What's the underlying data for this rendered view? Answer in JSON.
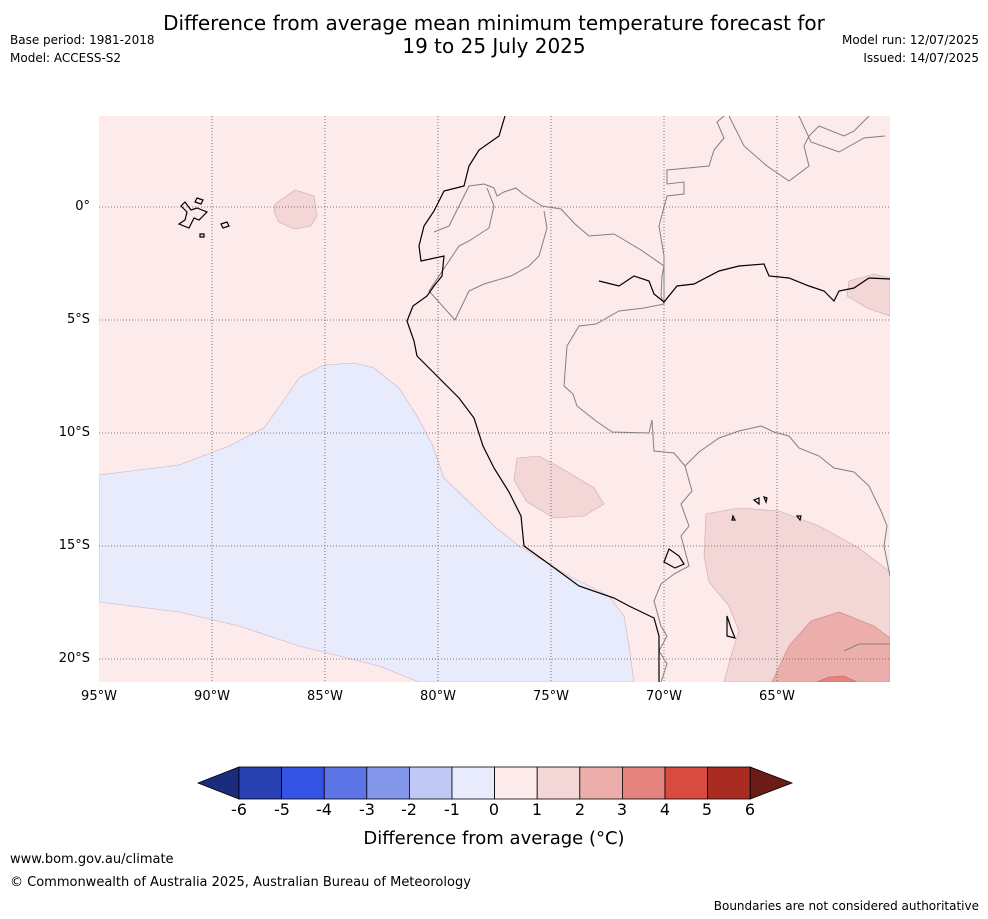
{
  "header": {
    "title_line1": "Difference from average mean minimum temperature forecast for",
    "title_line2": "19 to 25 July 2025",
    "base_period": "Base period: 1981-2018",
    "model": "Model: ACCESS-S2",
    "model_run": "Model run: 12/07/2025",
    "issued": "Issued: 14/07/2025"
  },
  "map": {
    "lon_ticks": [
      "95°W",
      "90°W",
      "85°W",
      "80°W",
      "75°W",
      "70°W",
      "65°W"
    ],
    "lat_ticks": [
      "0°",
      "5°S",
      "10°S",
      "15°S",
      "20°S"
    ],
    "colors": {
      "anomaly_neg1_0": "#e8ebfb",
      "anomaly_0_1": "#fcebea",
      "anomaly_1_2": "#f3d6d6",
      "anomaly_2_3": "#ecaeab",
      "anomaly_3_4": "#e5837e",
      "coastline": "#000000",
      "borders": "#808080",
      "gridlines": "#555555"
    }
  },
  "colorbar": {
    "label": "Difference from average (°C)",
    "ticks": [
      "-6",
      "-5",
      "-4",
      "-3",
      "-2",
      "-1",
      "0",
      "1",
      "2",
      "3",
      "4",
      "5",
      "6"
    ],
    "colors": [
      "#1b2b7e",
      "#2840b0",
      "#3553e3",
      "#5d74e6",
      "#8597ea",
      "#c0c8f5",
      "#e8ebfb",
      "#fcebea",
      "#f3d6d6",
      "#ecaeab",
      "#e5837e",
      "#d94a41",
      "#a92b22",
      "#6c1c17"
    ]
  },
  "footer": {
    "website": "www.bom.gov.au/climate",
    "copyright": "© Commonwealth of Australia 2025, Australian Bureau of Meteorology",
    "disclaimer": "Boundaries are not considered authoritative"
  }
}
